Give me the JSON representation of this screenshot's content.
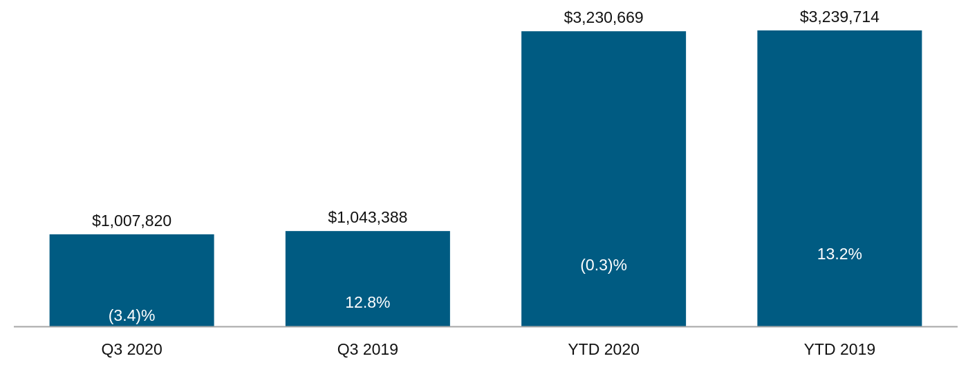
{
  "chart_data": {
    "type": "bar",
    "categories": [
      "Q3 2020",
      "Q3 2019",
      "YTD 2020",
      "YTD 2019"
    ],
    "values": [
      1007820,
      1043388,
      3230669,
      3239714
    ],
    "value_labels": [
      "$1,007,820",
      "$1,043,388",
      "$3,230,669",
      "$3,239,714"
    ],
    "growth_labels": [
      "(3.4)%",
      "12.8%",
      "(0.3)%",
      "13.2%"
    ],
    "title": "",
    "xlabel": "",
    "ylabel": "",
    "ylim": [
      0,
      3239714
    ],
    "grid": false,
    "legend": "none",
    "colors": {
      "bar": "#005B82",
      "axis": "#A6A6A6"
    }
  }
}
